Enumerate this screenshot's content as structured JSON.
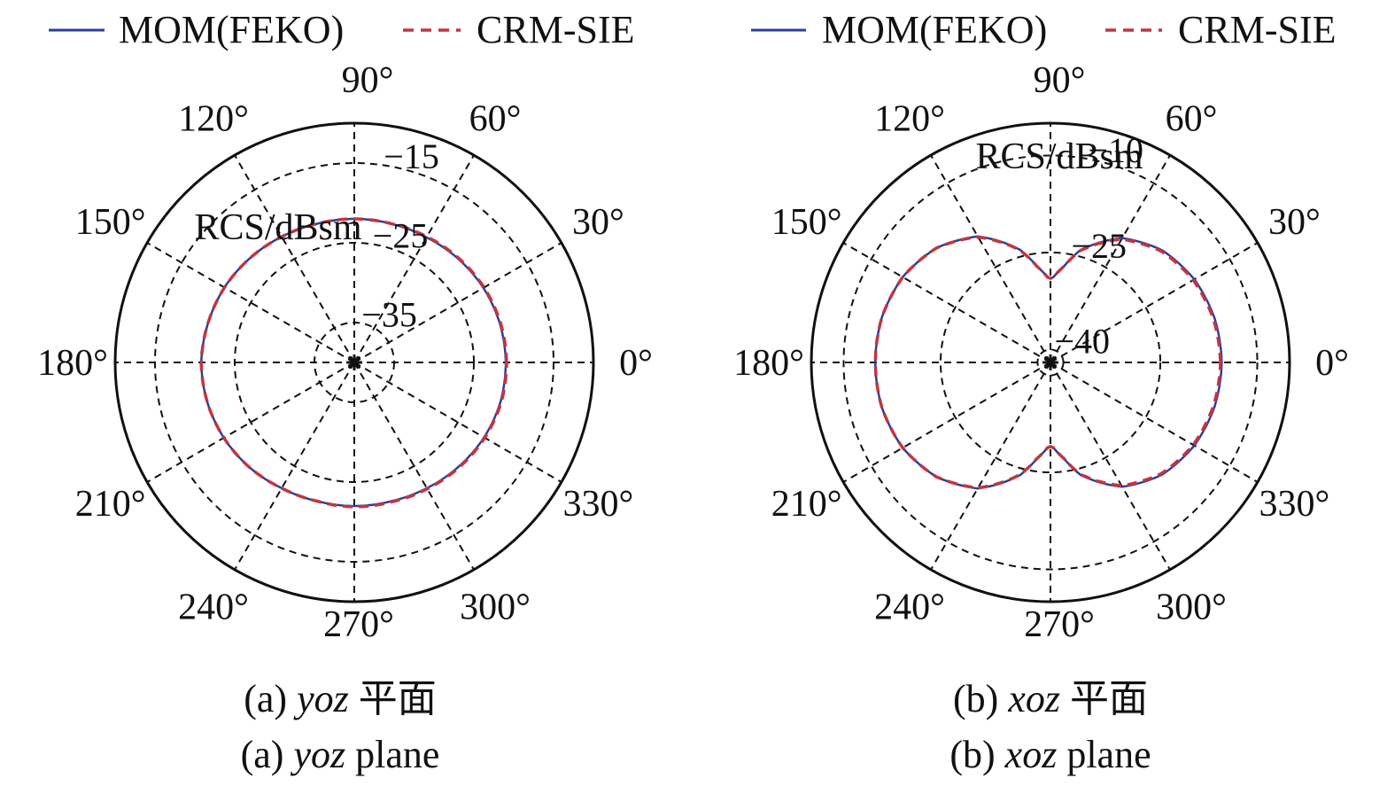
{
  "legend": {
    "series": [
      {
        "name": "MOM(FEKO)",
        "color": "#2b3f9c",
        "style": "solid"
      },
      {
        "name": "CRM-SIE",
        "color": "#c4343f",
        "style": "dashed"
      }
    ]
  },
  "chart_data": [
    {
      "type": "polar-line",
      "id": "a",
      "radial_label": "RCS/dBsm",
      "angle_unit": "deg",
      "angle_ticks": [
        "0°",
        "30°",
        "60°",
        "90°",
        "120°",
        "150°",
        "180°",
        "210°",
        "240°",
        "270°",
        "300°",
        "330°"
      ],
      "rlim": [
        -40,
        -10
      ],
      "ring_values": [
        -35,
        -25,
        -15
      ],
      "ring_labels": [
        "−35",
        "−25",
        "−15"
      ],
      "caption": {
        "prefix": "(a) ",
        "plane": "yoz",
        "suffix_cn": " 平面",
        "suffix_en": " plane"
      },
      "series": [
        {
          "name": "MOM(FEKO)",
          "angles_deg": [
            0,
            15,
            30,
            45,
            60,
            75,
            90,
            105,
            120,
            135,
            150,
            165,
            180,
            195,
            210,
            225,
            240,
            255,
            270,
            285,
            300,
            315,
            330,
            345
          ],
          "values_db": [
            -21.0,
            -21.1,
            -21.3,
            -21.6,
            -21.9,
            -22.0,
            -22.0,
            -22.0,
            -21.8,
            -21.5,
            -21.2,
            -21.0,
            -20.8,
            -20.9,
            -21.1,
            -21.4,
            -21.8,
            -22.0,
            -22.0,
            -22.0,
            -21.8,
            -21.5,
            -21.2,
            -21.0
          ]
        },
        {
          "name": "CRM-SIE",
          "angles_deg": [
            0,
            15,
            30,
            45,
            60,
            75,
            90,
            105,
            120,
            135,
            150,
            165,
            180,
            195,
            210,
            225,
            240,
            255,
            270,
            285,
            300,
            315,
            330,
            345
          ],
          "values_db": [
            -20.9,
            -21.0,
            -21.2,
            -21.5,
            -21.8,
            -22.0,
            -22.0,
            -22.0,
            -21.8,
            -21.5,
            -21.2,
            -21.0,
            -20.8,
            -20.9,
            -21.1,
            -21.4,
            -21.8,
            -22.0,
            -21.9,
            -21.9,
            -21.7,
            -21.4,
            -21.1,
            -20.9
          ]
        }
      ]
    },
    {
      "type": "polar-line",
      "id": "b",
      "radial_label": "RCS/dBsm",
      "angle_unit": "deg",
      "angle_ticks": [
        "0°",
        "30°",
        "60°",
        "90°",
        "120°",
        "150°",
        "180°",
        "210°",
        "240°",
        "270°",
        "300°",
        "330°"
      ],
      "rlim": [
        -42,
        -5
      ],
      "ring_values": [
        -40,
        -25,
        -10
      ],
      "ring_labels": [
        "−40",
        "−25",
        "−10"
      ],
      "caption": {
        "prefix": "(b) ",
        "plane": "xoz",
        "suffix_cn": " 平面",
        "suffix_en": " plane"
      },
      "series": [
        {
          "name": "MOM(FEKO)",
          "angles_deg": [
            0,
            15,
            30,
            45,
            60,
            75,
            82,
            88,
            90,
            92,
            98,
            105,
            120,
            135,
            150,
            165,
            180,
            195,
            210,
            225,
            240,
            255,
            262,
            268,
            270,
            272,
            278,
            285,
            300,
            315,
            330,
            345
          ],
          "values_db": [
            -15.5,
            -15.7,
            -16.3,
            -17.5,
            -19.8,
            -24.0,
            -27.0,
            -28.8,
            -29.0,
            -28.8,
            -27.0,
            -24.0,
            -19.5,
            -17.0,
            -15.6,
            -15.0,
            -14.9,
            -15.0,
            -15.6,
            -17.0,
            -19.5,
            -24.0,
            -27.0,
            -28.8,
            -29.0,
            -28.8,
            -27.0,
            -24.0,
            -19.8,
            -17.5,
            -16.3,
            -15.7
          ]
        },
        {
          "name": "CRM-SIE",
          "angles_deg": [
            0,
            15,
            30,
            45,
            60,
            75,
            82,
            88,
            90,
            92,
            98,
            105,
            120,
            135,
            150,
            165,
            180,
            195,
            210,
            225,
            240,
            255,
            262,
            268,
            270,
            272,
            278,
            285,
            300,
            315,
            330,
            345
          ],
          "values_db": [
            -15.7,
            -15.9,
            -16.5,
            -17.7,
            -20.0,
            -24.1,
            -27.0,
            -28.8,
            -29.0,
            -28.8,
            -27.0,
            -24.1,
            -19.6,
            -17.0,
            -15.6,
            -15.0,
            -14.9,
            -15.0,
            -15.6,
            -17.0,
            -19.6,
            -24.1,
            -27.0,
            -28.8,
            -29.0,
            -28.8,
            -27.0,
            -24.1,
            -20.0,
            -17.7,
            -16.5,
            -15.9
          ]
        }
      ]
    }
  ]
}
